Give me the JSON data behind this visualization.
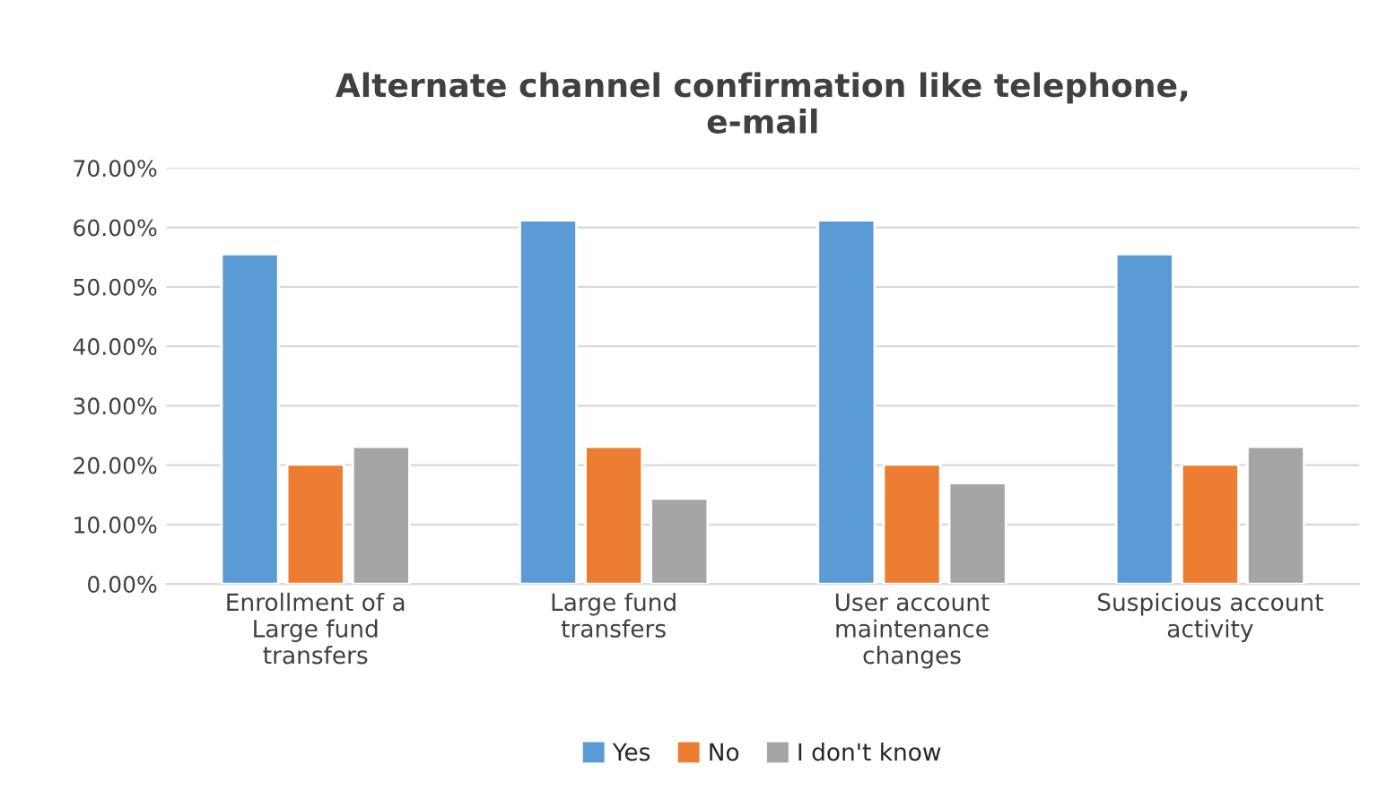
{
  "chart_data": {
    "type": "bar",
    "title": "Alternate channel confirmation like telephone,\ne-mail",
    "categories": [
      "Enrollment of a\nLarge fund\ntransfers",
      "Large fund\ntransfers",
      "User account\nmaintenance\nchanges",
      "Suspicious account\nactivity"
    ],
    "series": [
      {
        "name": "Yes",
        "color": "#5b9bd5",
        "values": [
          55.5,
          61.2,
          61.2,
          55.5
        ]
      },
      {
        "name": "No",
        "color": "#ed7d31",
        "values": [
          20.1,
          23.1,
          20.1,
          20.1
        ]
      },
      {
        "name": "I don't know",
        "color": "#a5a5a5",
        "values": [
          23.1,
          14.4,
          17.0,
          23.1
        ]
      }
    ],
    "ylim": [
      0,
      70
    ],
    "yticks": [
      {
        "value": 0,
        "label": "0.00%"
      },
      {
        "value": 10,
        "label": "10.00%"
      },
      {
        "value": 20,
        "label": "20.00%"
      },
      {
        "value": 30,
        "label": "30.00%"
      },
      {
        "value": 40,
        "label": "40.00%"
      },
      {
        "value": 50,
        "label": "50.00%"
      },
      {
        "value": 60,
        "label": "60.00%"
      },
      {
        "value": 70,
        "label": "70.00%"
      }
    ],
    "grid": "y",
    "legend": "bottom"
  }
}
